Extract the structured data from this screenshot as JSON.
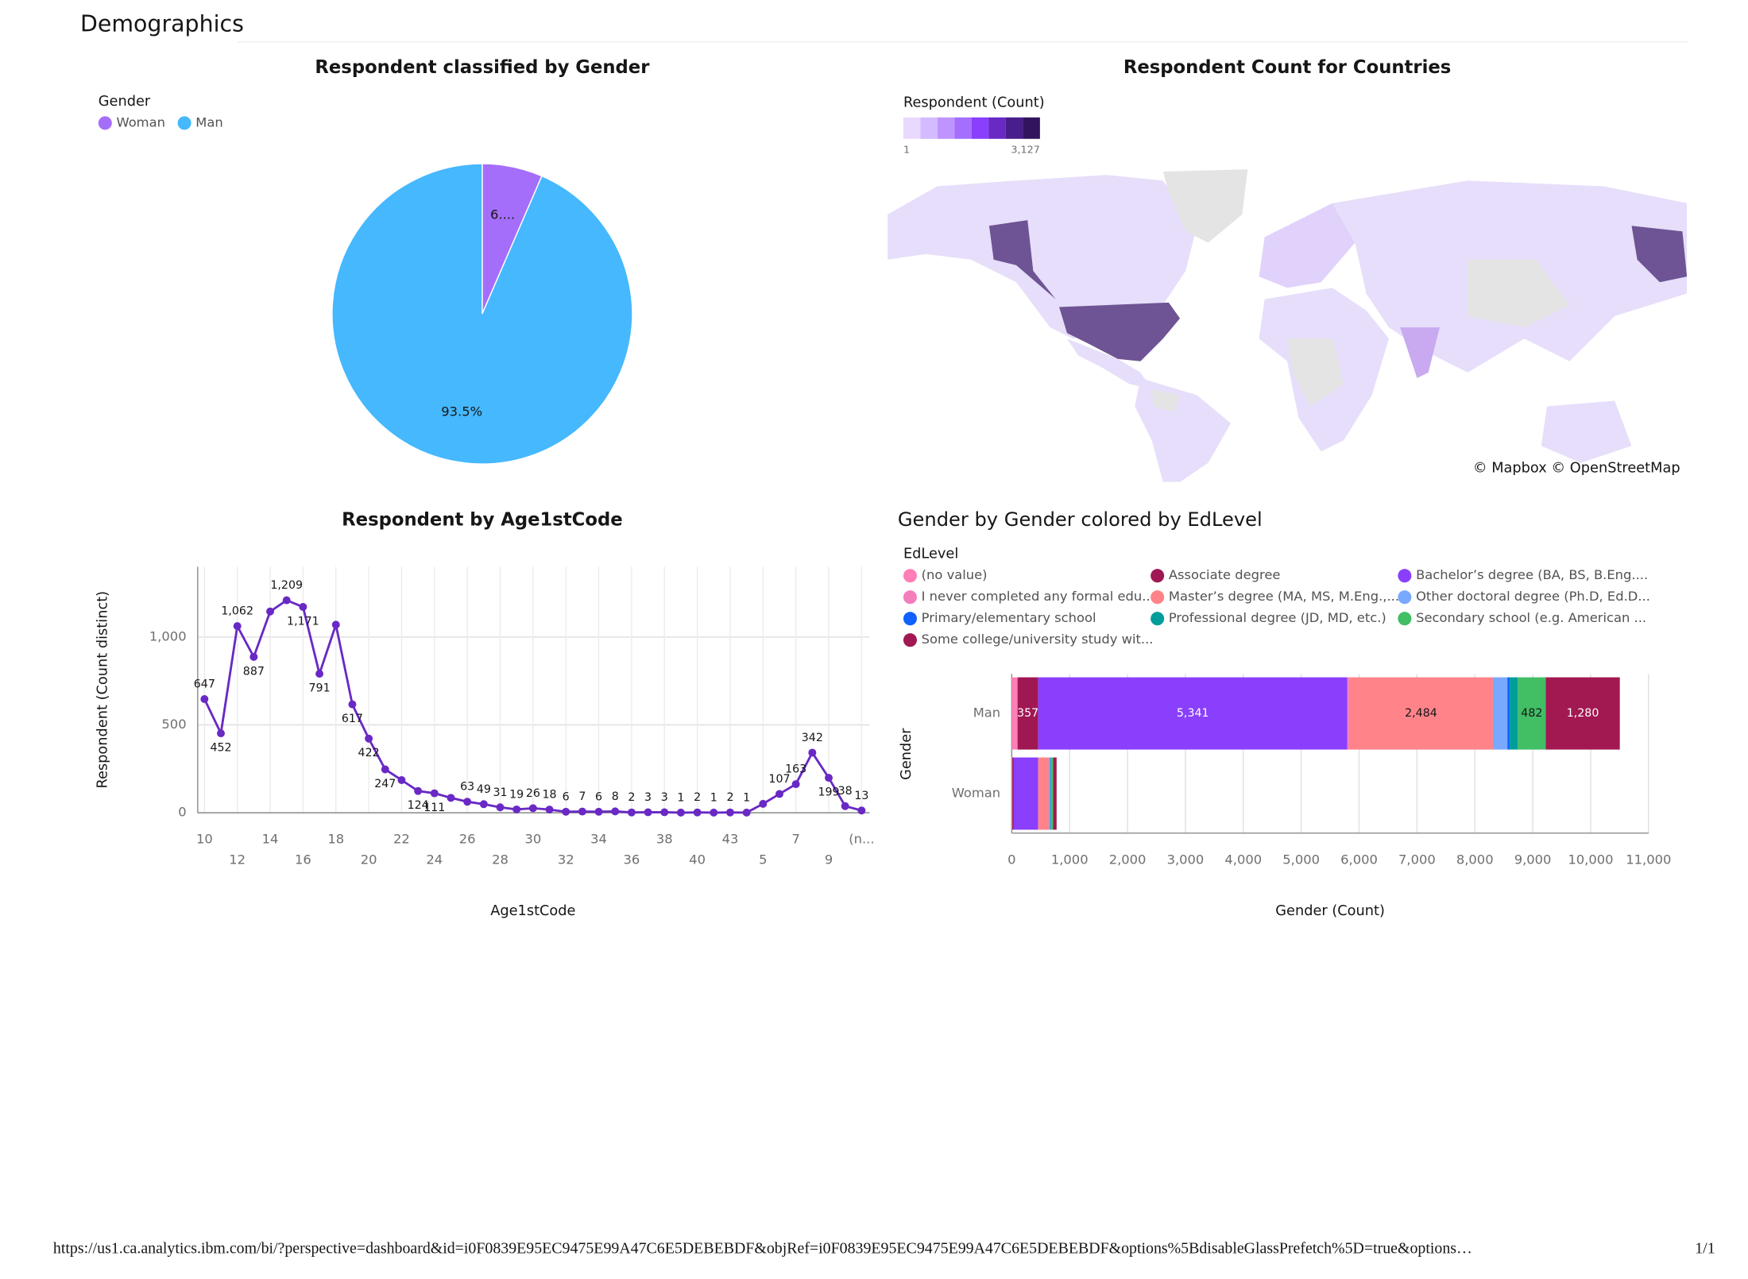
{
  "page": {
    "title": "Demographics",
    "footer": {
      "url": "https://us1.ca.analytics.ibm.com/bi/?perspective=dashboard&id=i0F0839E95EC9475E99A47C6E5DEBEBDF&objRef=i0F0839E95EC9475E99A47C6E5DEBEBDF&options%5BdisableGlassPrefetch%5D=true&options…",
      "page_number": "1/1"
    }
  },
  "chart_data": [
    {
      "type": "pie",
      "title": "Respondent classified by Gender",
      "legend_title": "Gender",
      "categories": [
        "Woman",
        "Man"
      ],
      "values": [
        6.5,
        93.5
      ],
      "value_labels": [
        "6....",
        "93.5%"
      ],
      "colors": [
        "#a56efa",
        "#45b8fe"
      ]
    },
    {
      "type": "map",
      "title": "Respondent Count for Countries",
      "legend_title": "Respondent (Count)",
      "color_scale": [
        "#e8daff",
        "#d4bbff",
        "#be95ff",
        "#a56eff",
        "#8a3ffc",
        "#6929c4",
        "#491d8b",
        "#31135e"
      ],
      "colorbar_ticks": [
        1,
        {
          "value": 3127,
          "label": "3,127"
        }
      ],
      "attribution": "© Mapbox © OpenStreetMap"
    },
    {
      "type": "line",
      "title": "Respondent by Age1stCode",
      "x_label": "Age1stCode",
      "y_label": "Respondent (Count distinct)",
      "categories": [
        "10",
        null,
        "12",
        null,
        "14",
        null,
        "16",
        null,
        "18",
        null,
        "20",
        null,
        "22",
        null,
        "24",
        null,
        "26",
        null,
        "28",
        null,
        "30",
        null,
        "32",
        null,
        "34",
        null,
        "36",
        null,
        "38",
        null,
        "40",
        null,
        "43",
        null,
        "5",
        null,
        "7",
        null,
        "9",
        null,
        "(n..."
      ],
      "values": [
        647,
        452,
        1062,
        887,
        1145,
        1209,
        1171,
        791,
        1070,
        617,
        422,
        247,
        186,
        124,
        111,
        85,
        63,
        49,
        31,
        19,
        26,
        18,
        6,
        7,
        6,
        8,
        2,
        3,
        3,
        1,
        2,
        1,
        2,
        1,
        51,
        107,
        163,
        342,
        199,
        38,
        13
      ],
      "value_labels": [
        "647",
        "452",
        "1,062",
        "887",
        null,
        "1,209",
        "1,171",
        "791",
        null,
        "617",
        "422",
        "247",
        null,
        "124",
        "111",
        null,
        "63",
        "49",
        "31",
        "19",
        "26",
        "18",
        "6",
        "7",
        "6",
        "8",
        "2",
        "3",
        "3",
        "1",
        "2",
        "1",
        "2",
        "1",
        null,
        "107",
        "163",
        "342",
        "199",
        "38",
        "13"
      ],
      "color": "#6929c4",
      "ylim": [
        0,
        1400
      ],
      "yticks": [
        0,
        500,
        {
          "value": 1000,
          "label": "1,000"
        }
      ],
      "grid": true
    },
    {
      "type": "stacked-bar-horizontal",
      "title": "Gender by Gender colored by EdLevel",
      "legend_title": "EdLevel",
      "x_label": "Gender (Count)",
      "y_label": "Gender",
      "categories": [
        "Man",
        "Woman"
      ],
      "series": [
        {
          "name": "(no value)",
          "color": "#ff7eb6",
          "values": [
            100,
            10
          ]
        },
        {
          "name": "Associate degree",
          "color": "#9f1853",
          "values": [
            357,
            25
          ],
          "value_labels": [
            "357",
            null
          ]
        },
        {
          "name": "Bachelor’s degree (BA, BS, B.Eng....",
          "color": "#8a3ffc",
          "values": [
            5341,
            420
          ],
          "value_labels": [
            "5,341",
            null
          ]
        },
        {
          "name": "I never completed any formal edu...",
          "color": "#f47ebc",
          "values": [
            30,
            5
          ]
        },
        {
          "name": "Master’s degree (MA, MS, M.Eng.,...",
          "color": "#ff8389",
          "values": [
            2484,
            180
          ],
          "value_labels": [
            "2,484",
            null
          ]
        },
        {
          "name": "Other doctoral degree (Ph.D, Ed.D...",
          "color": "#78a9ff",
          "values": [
            250,
            25
          ]
        },
        {
          "name": "Primary/elementary school",
          "color": "#0f62fe",
          "values": [
            40,
            5
          ]
        },
        {
          "name": "Professional degree (JD, MD, etc.)",
          "color": "#009d9a",
          "values": [
            140,
            15
          ]
        },
        {
          "name": "Secondary school (e.g. American ...",
          "color": "#42be65",
          "values": [
            482,
            30
          ],
          "value_labels": [
            "482",
            null
          ]
        },
        {
          "name": "Some college/university study wit...",
          "color": "#a11950",
          "values": [
            1280,
            60
          ],
          "value_labels": [
            "1,280",
            null
          ]
        }
      ],
      "xlim": [
        0,
        11000
      ],
      "xticks": [
        0,
        {
          "value": 1000,
          "label": "1,000"
        },
        {
          "value": 2000,
          "label": "2,000"
        },
        {
          "value": 3000,
          "label": "3,000"
        },
        {
          "value": 4000,
          "label": "4,000"
        },
        {
          "value": 5000,
          "label": "5,000"
        },
        {
          "value": 6000,
          "label": "6,000"
        },
        {
          "value": 7000,
          "label": "7,000"
        },
        {
          "value": 8000,
          "label": "8,000"
        },
        {
          "value": 9000,
          "label": "9,000"
        },
        {
          "value": 10000,
          "label": "10,000"
        },
        {
          "value": 11000,
          "label": "11,000"
        }
      ],
      "grid": true
    }
  ]
}
